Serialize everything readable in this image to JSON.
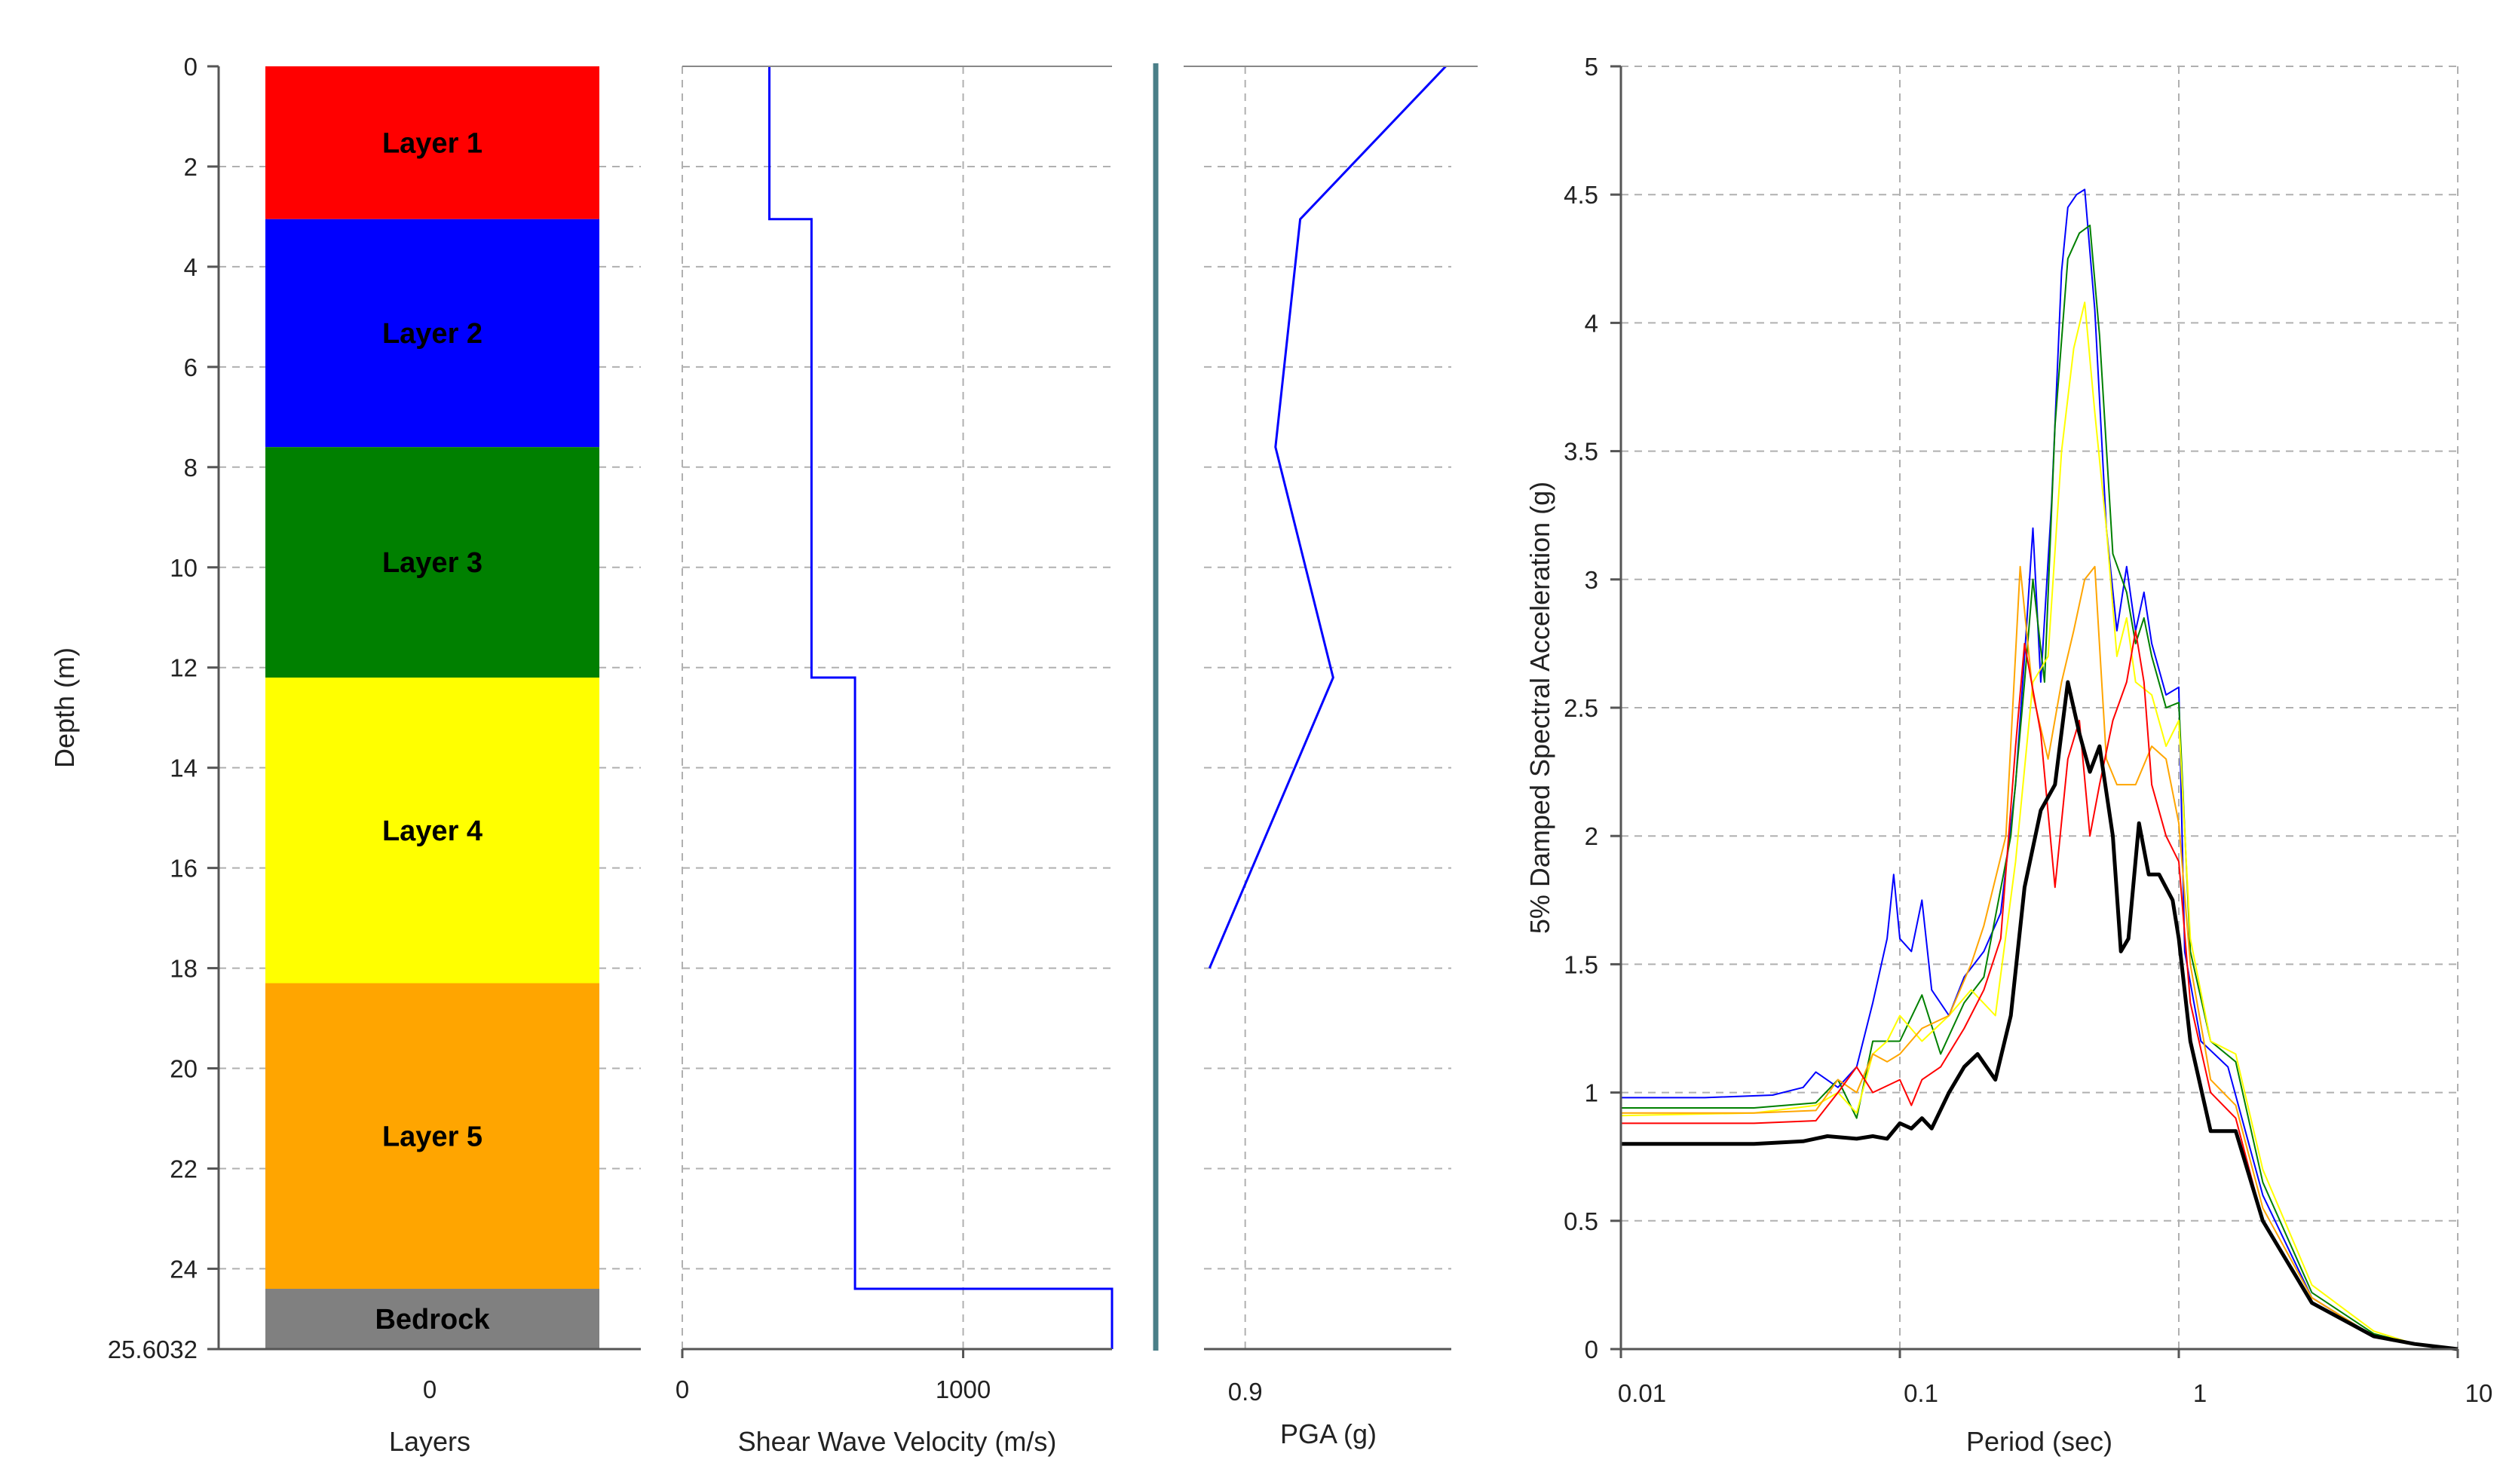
{
  "chart_data": [
    {
      "type": "bar",
      "name": "layers",
      "xlabel": "Layers",
      "ylabel": "Depth (m)",
      "xticks": [
        "0"
      ],
      "yticks": [
        "0",
        "2",
        "4",
        "6",
        "8",
        "10",
        "12",
        "14",
        "16",
        "18",
        "20",
        "22",
        "24",
        "25.6032"
      ],
      "ylim": [
        0,
        25.6032
      ],
      "layers": [
        {
          "label": "Layer 1",
          "top": 0,
          "bottom": 3.05,
          "color": "#ff0000"
        },
        {
          "label": "Layer 2",
          "top": 3.05,
          "bottom": 7.6,
          "color": "#0000ff"
        },
        {
          "label": "Layer 3",
          "top": 7.6,
          "bottom": 12.2,
          "color": "#008000"
        },
        {
          "label": "Layer 4",
          "top": 12.2,
          "bottom": 18.3,
          "color": "#ffff00"
        },
        {
          "label": "Layer 5",
          "top": 18.3,
          "bottom": 24.4,
          "color": "#ffa500"
        },
        {
          "label": "Bedrock",
          "top": 24.4,
          "bottom": 25.6032,
          "color": "#808080"
        }
      ]
    },
    {
      "type": "line",
      "name": "shear-wave-velocity",
      "xlabel": "Shear Wave Velocity (m/s)",
      "xticks": [
        "0",
        "1000"
      ],
      "xlim": [
        0,
        1530
      ],
      "ylim": [
        0,
        25.6032
      ],
      "color": "#0000ff",
      "points": [
        [
          310,
          0
        ],
        [
          310,
          3.05
        ],
        [
          460,
          3.05
        ],
        [
          460,
          12.2
        ],
        [
          615,
          12.2
        ],
        [
          615,
          24.4
        ],
        [
          1530,
          24.4
        ],
        [
          1530,
          25.6032
        ]
      ]
    },
    {
      "type": "line",
      "name": "pga",
      "xlabel": "PGA (g)",
      "xticks": [
        "0.9"
      ],
      "xlim": [
        0.885,
        0.975
      ],
      "ylim": [
        0,
        25.6032
      ],
      "color": "#0000ff",
      "points": [
        [
          0.973,
          0
        ],
        [
          0.92,
          3.05
        ],
        [
          0.911,
          7.6
        ],
        [
          0.932,
          12.2
        ],
        [
          0.887,
          18.0
        ]
      ]
    },
    {
      "type": "line",
      "name": "response-spectra",
      "xlabel": "Period (sec)",
      "ylabel": "5% Damped Spectral Acceleration (g)",
      "x_scale": "log",
      "xlim": [
        0.01,
        10
      ],
      "ylim": [
        0,
        5
      ],
      "xticks": [
        "0.01",
        "0.1",
        "1",
        "10"
      ],
      "yticks": [
        "0",
        "0.5",
        "1",
        "1.5",
        "2",
        "2.5",
        "3",
        "3.5",
        "4",
        "4.5",
        "5"
      ],
      "series": [
        {
          "color": "#0000ff",
          "width": 2,
          "points": [
            [
              0.01,
              0.98
            ],
            [
              0.02,
              0.98
            ],
            [
              0.035,
              0.99
            ],
            [
              0.045,
              1.02
            ],
            [
              0.05,
              1.08
            ],
            [
              0.06,
              1.02
            ],
            [
              0.07,
              1.1
            ],
            [
              0.08,
              1.35
            ],
            [
              0.09,
              1.6
            ],
            [
              0.095,
              1.85
            ],
            [
              0.1,
              1.6
            ],
            [
              0.11,
              1.55
            ],
            [
              0.12,
              1.75
            ],
            [
              0.13,
              1.4
            ],
            [
              0.15,
              1.3
            ],
            [
              0.17,
              1.45
            ],
            [
              0.2,
              1.55
            ],
            [
              0.23,
              1.7
            ],
            [
              0.26,
              2.2
            ],
            [
              0.28,
              2.7
            ],
            [
              0.3,
              3.2
            ],
            [
              0.32,
              2.6
            ],
            [
              0.35,
              3.3
            ],
            [
              0.38,
              4.2
            ],
            [
              0.4,
              4.45
            ],
            [
              0.43,
              4.5
            ],
            [
              0.46,
              4.52
            ],
            [
              0.5,
              4.05
            ],
            [
              0.55,
              3.2
            ],
            [
              0.6,
              2.8
            ],
            [
              0.65,
              3.05
            ],
            [
              0.7,
              2.8
            ],
            [
              0.75,
              2.95
            ],
            [
              0.8,
              2.75
            ],
            [
              0.9,
              2.55
            ],
            [
              1.0,
              2.58
            ],
            [
              1.05,
              1.55
            ],
            [
              1.2,
              1.2
            ],
            [
              1.5,
              1.1
            ],
            [
              2,
              0.6
            ],
            [
              3,
              0.2
            ],
            [
              5,
              0.05
            ],
            [
              7,
              0.02
            ],
            [
              10,
              0.0
            ]
          ]
        },
        {
          "color": "#008000",
          "width": 2,
          "points": [
            [
              0.01,
              0.94
            ],
            [
              0.03,
              0.94
            ],
            [
              0.05,
              0.96
            ],
            [
              0.06,
              1.05
            ],
            [
              0.07,
              0.9
            ],
            [
              0.08,
              1.2
            ],
            [
              0.1,
              1.2
            ],
            [
              0.12,
              1.38
            ],
            [
              0.14,
              1.15
            ],
            [
              0.17,
              1.35
            ],
            [
              0.2,
              1.45
            ],
            [
              0.25,
              2.0
            ],
            [
              0.28,
              2.6
            ],
            [
              0.3,
              3.0
            ],
            [
              0.33,
              2.6
            ],
            [
              0.36,
              3.6
            ],
            [
              0.4,
              4.25
            ],
            [
              0.44,
              4.35
            ],
            [
              0.48,
              4.38
            ],
            [
              0.52,
              3.95
            ],
            [
              0.58,
              3.1
            ],
            [
              0.65,
              2.95
            ],
            [
              0.7,
              2.75
            ],
            [
              0.75,
              2.85
            ],
            [
              0.8,
              2.7
            ],
            [
              0.9,
              2.5
            ],
            [
              1.0,
              2.52
            ],
            [
              1.1,
              1.55
            ],
            [
              1.3,
              1.2
            ],
            [
              1.6,
              1.12
            ],
            [
              2,
              0.65
            ],
            [
              3,
              0.22
            ],
            [
              5,
              0.06
            ],
            [
              7,
              0.02
            ],
            [
              10,
              0.0
            ]
          ]
        },
        {
          "color": "#ffff00",
          "width": 2,
          "points": [
            [
              0.01,
              0.91
            ],
            [
              0.03,
              0.92
            ],
            [
              0.05,
              0.95
            ],
            [
              0.06,
              1.0
            ],
            [
              0.07,
              0.92
            ],
            [
              0.08,
              1.15
            ],
            [
              0.09,
              1.2
            ],
            [
              0.1,
              1.3
            ],
            [
              0.12,
              1.2
            ],
            [
              0.15,
              1.3
            ],
            [
              0.18,
              1.4
            ],
            [
              0.22,
              1.3
            ],
            [
              0.26,
              1.9
            ],
            [
              0.3,
              2.6
            ],
            [
              0.34,
              2.7
            ],
            [
              0.38,
              3.5
            ],
            [
              0.42,
              3.9
            ],
            [
              0.46,
              4.08
            ],
            [
              0.5,
              3.65
            ],
            [
              0.55,
              3.2
            ],
            [
              0.6,
              2.7
            ],
            [
              0.65,
              2.85
            ],
            [
              0.7,
              2.6
            ],
            [
              0.8,
              2.55
            ],
            [
              0.9,
              2.35
            ],
            [
              1.0,
              2.45
            ],
            [
              1.1,
              1.6
            ],
            [
              1.3,
              1.2
            ],
            [
              1.6,
              1.15
            ],
            [
              2,
              0.7
            ],
            [
              3,
              0.25
            ],
            [
              5,
              0.07
            ],
            [
              7,
              0.02
            ],
            [
              10,
              0.0
            ]
          ]
        },
        {
          "color": "#ffa500",
          "width": 2,
          "points": [
            [
              0.01,
              0.92
            ],
            [
              0.03,
              0.92
            ],
            [
              0.05,
              0.93
            ],
            [
              0.06,
              1.05
            ],
            [
              0.07,
              1.0
            ],
            [
              0.08,
              1.15
            ],
            [
              0.09,
              1.12
            ],
            [
              0.1,
              1.15
            ],
            [
              0.12,
              1.25
            ],
            [
              0.15,
              1.3
            ],
            [
              0.18,
              1.5
            ],
            [
              0.2,
              1.65
            ],
            [
              0.24,
              2.0
            ],
            [
              0.27,
              3.05
            ],
            [
              0.3,
              2.55
            ],
            [
              0.34,
              2.3
            ],
            [
              0.38,
              2.6
            ],
            [
              0.42,
              2.8
            ],
            [
              0.46,
              3.0
            ],
            [
              0.5,
              3.05
            ],
            [
              0.55,
              2.3
            ],
            [
              0.6,
              2.2
            ],
            [
              0.7,
              2.2
            ],
            [
              0.8,
              2.35
            ],
            [
              0.9,
              2.3
            ],
            [
              1.0,
              2.05
            ],
            [
              1.1,
              1.5
            ],
            [
              1.3,
              1.05
            ],
            [
              1.6,
              0.95
            ],
            [
              2,
              0.55
            ],
            [
              3,
              0.2
            ],
            [
              5,
              0.05
            ],
            [
              7,
              0.02
            ],
            [
              10,
              0.0
            ]
          ]
        },
        {
          "color": "#ff0000",
          "width": 2,
          "points": [
            [
              0.01,
              0.88
            ],
            [
              0.03,
              0.88
            ],
            [
              0.05,
              0.89
            ],
            [
              0.06,
              1.0
            ],
            [
              0.07,
              1.1
            ],
            [
              0.08,
              1.0
            ],
            [
              0.1,
              1.05
            ],
            [
              0.11,
              0.95
            ],
            [
              0.12,
              1.05
            ],
            [
              0.14,
              1.1
            ],
            [
              0.17,
              1.25
            ],
            [
              0.2,
              1.4
            ],
            [
              0.23,
              1.6
            ],
            [
              0.26,
              2.35
            ],
            [
              0.28,
              2.75
            ],
            [
              0.32,
              2.4
            ],
            [
              0.36,
              1.8
            ],
            [
              0.4,
              2.3
            ],
            [
              0.44,
              2.45
            ],
            [
              0.48,
              2.0
            ],
            [
              0.52,
              2.2
            ],
            [
              0.58,
              2.45
            ],
            [
              0.65,
              2.6
            ],
            [
              0.7,
              2.8
            ],
            [
              0.75,
              2.6
            ],
            [
              0.8,
              2.2
            ],
            [
              0.9,
              2.0
            ],
            [
              1.0,
              1.9
            ],
            [
              1.1,
              1.35
            ],
            [
              1.3,
              1.0
            ],
            [
              1.6,
              0.9
            ],
            [
              2,
              0.5
            ],
            [
              3,
              0.18
            ],
            [
              5,
              0.05
            ],
            [
              7,
              0.02
            ],
            [
              10,
              0.0
            ]
          ]
        },
        {
          "color": "#000000",
          "width": 5,
          "points": [
            [
              0.01,
              0.8
            ],
            [
              0.03,
              0.8
            ],
            [
              0.045,
              0.81
            ],
            [
              0.055,
              0.83
            ],
            [
              0.07,
              0.82
            ],
            [
              0.08,
              0.83
            ],
            [
              0.09,
              0.82
            ],
            [
              0.1,
              0.88
            ],
            [
              0.11,
              0.86
            ],
            [
              0.12,
              0.9
            ],
            [
              0.13,
              0.86
            ],
            [
              0.15,
              1.0
            ],
            [
              0.17,
              1.1
            ],
            [
              0.19,
              1.15
            ],
            [
              0.22,
              1.05
            ],
            [
              0.25,
              1.3
            ],
            [
              0.28,
              1.8
            ],
            [
              0.32,
              2.1
            ],
            [
              0.36,
              2.2
            ],
            [
              0.4,
              2.6
            ],
            [
              0.44,
              2.4
            ],
            [
              0.48,
              2.25
            ],
            [
              0.52,
              2.35
            ],
            [
              0.58,
              2.0
            ],
            [
              0.62,
              1.55
            ],
            [
              0.66,
              1.6
            ],
            [
              0.72,
              2.05
            ],
            [
              0.78,
              1.85
            ],
            [
              0.85,
              1.85
            ],
            [
              0.95,
              1.75
            ],
            [
              1.0,
              1.6
            ],
            [
              1.1,
              1.2
            ],
            [
              1.3,
              0.85
            ],
            [
              1.6,
              0.85
            ],
            [
              2,
              0.5
            ],
            [
              3,
              0.18
            ],
            [
              5,
              0.05
            ],
            [
              7,
              0.02
            ],
            [
              10,
              0.0
            ]
          ]
        }
      ]
    }
  ]
}
